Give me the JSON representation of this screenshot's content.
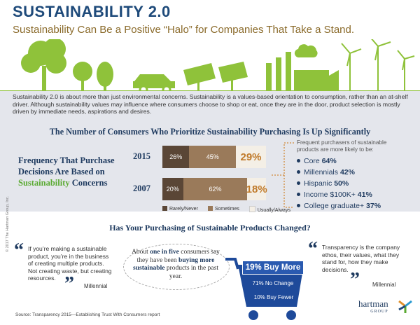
{
  "header": {
    "title": "SUSTAINABILITY 2.0",
    "subtitle": "Sustainability Can Be a Positive “Halo” for Companies That Take a Stand."
  },
  "intro": "Sustainability 2.0 is about more than just environmental concerns. Sustainability is a values-based orientation to consumption, rather than an at-shelf driver. Although sustainability values may influence where consumers choose to shop or eat, once they are in the door, product selection is mostly driven by immediate needs, aspirations and desires.",
  "section1": {
    "heading": "The Number of Consumers Who Prioritize Sustainability Purchasing Is Up Significantly",
    "freq_label_a": "Frequency That Purchase Decisions Are Based on ",
    "freq_label_green": "Sustainability",
    "freq_label_b": " Concerns"
  },
  "chart_data": {
    "type": "bar",
    "stacked": true,
    "categories": [
      "2015",
      "2007"
    ],
    "series": [
      {
        "name": "Rarely/Never",
        "values": [
          26,
          20
        ],
        "labels": [
          "26%",
          "20%"
        ]
      },
      {
        "name": "Sometimes",
        "values": [
          45,
          62
        ],
        "labels": [
          "45%",
          "62%"
        ]
      },
      {
        "name": "Usually/Always",
        "values": [
          29,
          18
        ],
        "labels": [
          "29%",
          "18%"
        ]
      }
    ],
    "colors": [
      "#5a4636",
      "#9a7a5a",
      "#f4efe6"
    ]
  },
  "frequent": {
    "header": "Frequent purchasers of sustainable products are more likely to be:",
    "items": [
      {
        "label": "Core",
        "value": "64%"
      },
      {
        "label": "Millennials",
        "value": "42%"
      },
      {
        "label": "Hispanic",
        "value": "50%"
      },
      {
        "label": "Income $100K+",
        "value": "41%"
      },
      {
        "label": "College graduate+",
        "value": "37%"
      }
    ]
  },
  "section2": {
    "heading": "Has Your Purchasing of Sustainable Products Changed?",
    "quote_left": "If you’re making a sustainable product, you’re in the business of creating multiple products. Not creating waste, but creating resources.",
    "attr_left": "Millennial",
    "oval_a": "About ",
    "oval_b": "one in five",
    "oval_c": " consumers say they have been ",
    "oval_d": "buying more sustainable",
    "oval_e": " products in the past year.",
    "buy_more": "19% Buy More",
    "no_change": "71%  No Change",
    "buy_fewer": "10%  Buy Fewer",
    "quote_right": "Transparency is the company ethos, their values, what they stand for, how they make decisions.",
    "attr_right": "Millennial"
  },
  "footer": {
    "source": "Source: Transparency 2015—Establishing Trust With Consumers report",
    "copyright": "© 2017 The Hartman Group, Inc.",
    "logo": "hartman",
    "logo_sub": "GROUP"
  }
}
